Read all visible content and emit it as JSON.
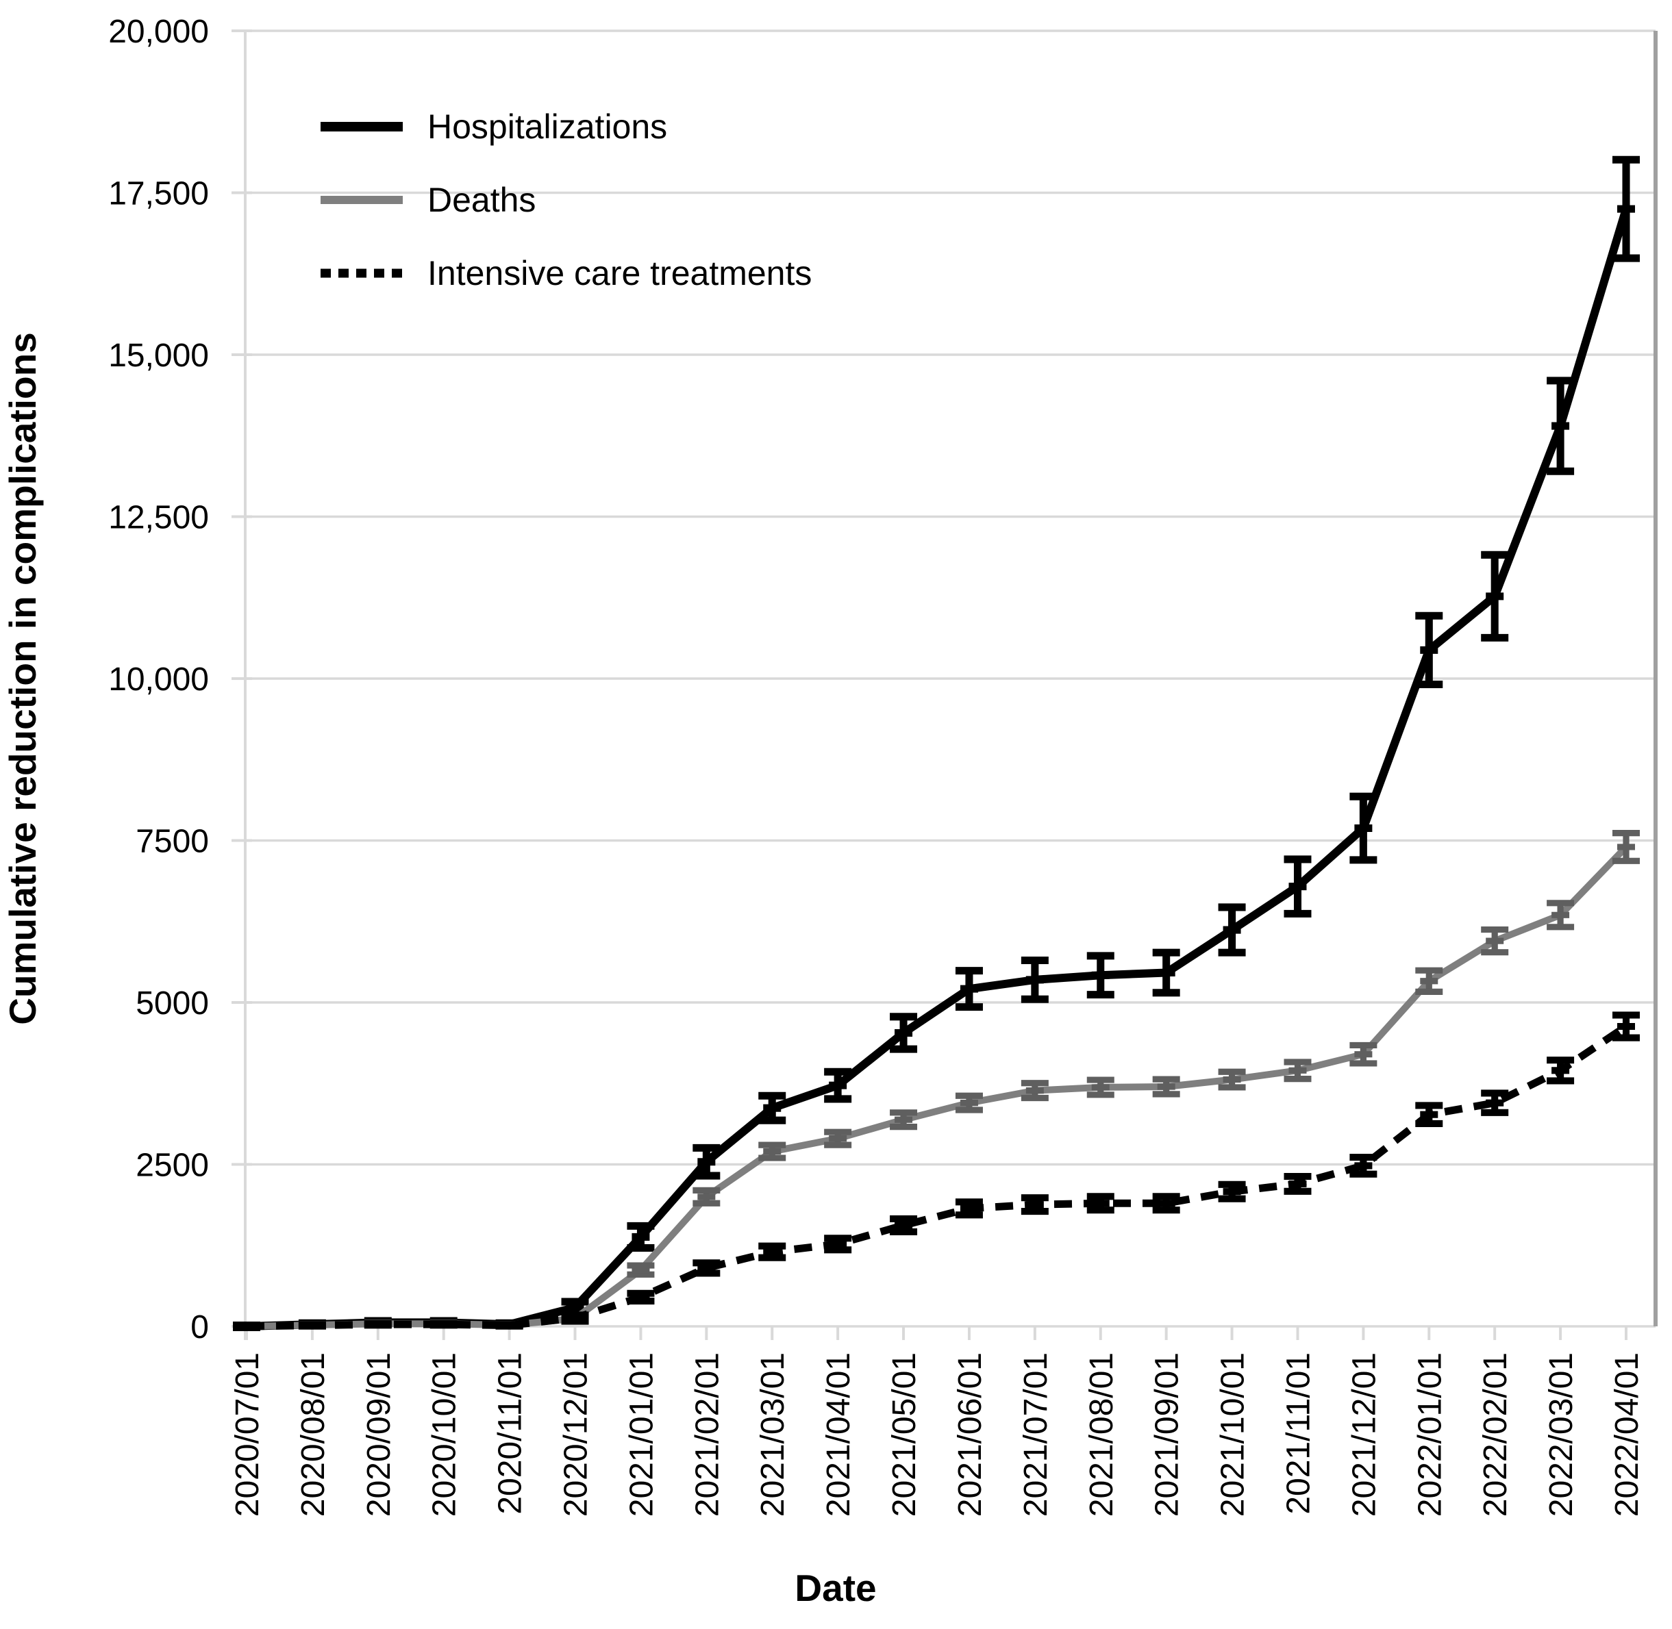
{
  "chart_data": {
    "type": "line",
    "title": "",
    "xlabel": "Date",
    "ylabel": "Cumulative reduction in complications",
    "ylim": [
      0,
      20000
    ],
    "grid": "horizontal",
    "legend_position": "top-left-inside",
    "y_ticks": [
      0,
      2500,
      5000,
      7500,
      10000,
      12500,
      15000,
      17500,
      20000
    ],
    "y_tick_labels": [
      "0",
      "2500",
      "5000",
      "7500",
      "10,000",
      "12,500",
      "15,000",
      "17,500",
      "20,000"
    ],
    "categories": [
      "2020/07/01",
      "2020/08/01",
      "2020/09/01",
      "2020/10/01",
      "2020/11/01",
      "2020/12/01",
      "2021/01/01",
      "2021/02/01",
      "2021/03/01",
      "2021/04/01",
      "2021/05/01",
      "2021/06/01",
      "2021/07/01",
      "2021/08/01",
      "2021/09/01",
      "2021/10/01",
      "2021/11/01",
      "2021/12/01",
      "2022/01/01",
      "2022/02/01",
      "2022/03/01",
      "2022/04/01"
    ],
    "series": [
      {
        "name": "Hospitalizations",
        "style": "solid",
        "color": "#000000",
        "error_color": "#000000",
        "line_width": 12,
        "values": [
          0,
          30,
          60,
          60,
          30,
          290,
          1380,
          2540,
          3370,
          3720,
          4530,
          5210,
          5350,
          5420,
          5460,
          6120,
          6790,
          7690,
          10440,
          11270,
          13900,
          17250
        ],
        "errors": [
          15,
          20,
          25,
          25,
          20,
          90,
          170,
          215,
          190,
          210,
          250,
          280,
          300,
          300,
          310,
          350,
          420,
          490,
          530,
          640,
          700,
          760
        ]
      },
      {
        "name": "Deaths",
        "style": "solid",
        "color": "#7f7f7f",
        "error_color": "#5f5f5f",
        "line_width": 10,
        "values": [
          0,
          20,
          40,
          40,
          20,
          120,
          870,
          2000,
          2700,
          2900,
          3190,
          3450,
          3640,
          3690,
          3700,
          3810,
          3950,
          4200,
          5330,
          5950,
          6350,
          7400
        ],
        "errors": [
          8,
          12,
          15,
          15,
          12,
          50,
          70,
          100,
          100,
          100,
          110,
          110,
          115,
          115,
          115,
          120,
          130,
          140,
          165,
          175,
          185,
          215
        ]
      },
      {
        "name": "Intensive care treatments",
        "style": "dashed",
        "color": "#000000",
        "error_color": "#000000",
        "line_width": 11,
        "values": [
          0,
          15,
          30,
          30,
          15,
          130,
          450,
          900,
          1150,
          1270,
          1560,
          1820,
          1880,
          1900,
          1900,
          2080,
          2200,
          2480,
          3270,
          3450,
          3950,
          4630
        ],
        "errors": [
          8,
          10,
          12,
          12,
          10,
          45,
          60,
          80,
          90,
          90,
          100,
          100,
          105,
          105,
          105,
          110,
          115,
          130,
          140,
          150,
          160,
          175
        ]
      }
    ]
  },
  "colors": {
    "grid": "#d9d9d9",
    "tick": "#d9d9d9",
    "axis_line": "#d9d9d9",
    "right_border": "#a0a0a0",
    "text": "#000000",
    "background": "#ffffff"
  }
}
